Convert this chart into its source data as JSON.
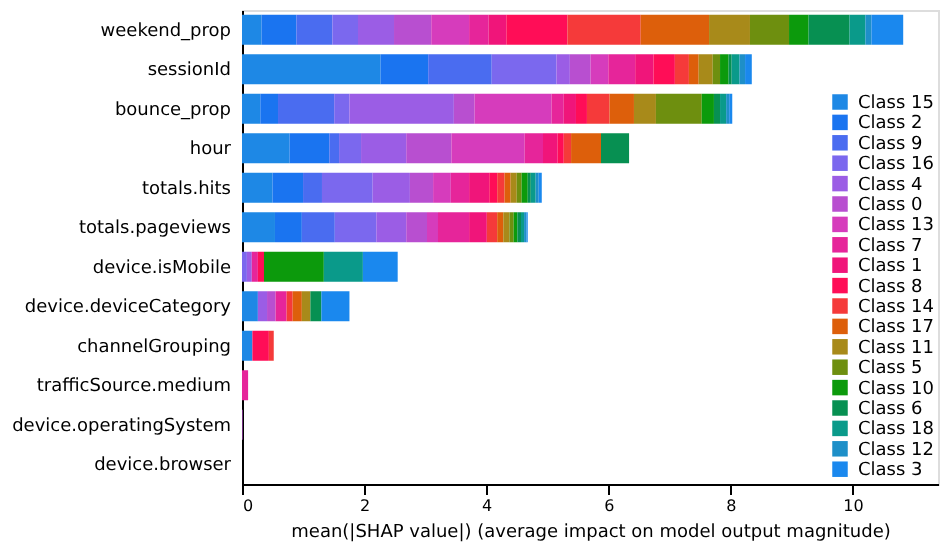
{
  "chart_data": {
    "type": "bar",
    "orientation": "horizontal",
    "stacked": true,
    "xlabel": "mean(|SHAP value|) (average impact on model output magnitude)",
    "categories": [
      "weekend_prop",
      "sessionId",
      "bounce_prop",
      "hour",
      "totals.hits",
      "totals.pageviews",
      "device.isMobile",
      "device.deviceCategory",
      "channelGrouping",
      "trafficSource.medium",
      "device.operatingSystem",
      "device.browser"
    ],
    "xlim": [
      0,
      11.4
    ],
    "xticks": [
      0,
      2,
      4,
      6,
      8,
      10
    ],
    "grid": false,
    "legend": "bottom right",
    "series": [
      {
        "name": "Class 15",
        "color": "#1e88e5",
        "values": [
          0.32,
          2.27,
          0.3,
          0.78,
          0.5,
          0.54,
          null,
          0.26,
          0.17,
          null,
          null,
          null
        ]
      },
      {
        "name": "Class 2",
        "color": "#1a74f0",
        "values": [
          0.57,
          0.78,
          0.29,
          0.65,
          0.5,
          0.44,
          null,
          null,
          null,
          null,
          null,
          null
        ]
      },
      {
        "name": "Class 9",
        "color": "#4a6cf0",
        "values": [
          0.59,
          1.04,
          0.92,
          0.16,
          0.31,
          0.54,
          null,
          null,
          null,
          null,
          null,
          null
        ]
      },
      {
        "name": "Class 16",
        "color": "#7b68ee",
        "values": [
          0.42,
          1.06,
          0.25,
          0.36,
          0.83,
          0.68,
          0.08,
          null,
          null,
          null,
          null,
          null
        ]
      },
      {
        "name": "Class 4",
        "color": "#9b5de5",
        "values": [
          0.59,
          0.22,
          1.71,
          0.74,
          0.61,
          0.49,
          0.08,
          0.15,
          null,
          null,
          null,
          null
        ]
      },
      {
        "name": "Class 0",
        "color": "#b84fd0",
        "values": [
          0.61,
          0.34,
          0.34,
          0.74,
          0.38,
          0.34,
          null,
          0.14,
          null,
          null,
          0.01,
          null
        ]
      },
      {
        "name": "Class 13",
        "color": "#d63cbc",
        "values": [
          0.62,
          0.29,
          1.26,
          1.2,
          0.29,
          0.18,
          null,
          null,
          null,
          null,
          null,
          null
        ]
      },
      {
        "name": "Class 7",
        "color": "#e6259a",
        "values": [
          0.32,
          0.44,
          0.2,
          0.3,
          0.3,
          0.51,
          0.1,
          0.18,
          null,
          0.1,
          null,
          null
        ]
      },
      {
        "name": "Class 1",
        "color": "#f0157a",
        "values": [
          0.29,
          0.3,
          0.2,
          0.24,
          0.33,
          0.29,
          null,
          null,
          null,
          null,
          null,
          null
        ]
      },
      {
        "name": "Class 8",
        "color": "#ff0d57",
        "values": [
          1.0,
          0.35,
          0.18,
          0.1,
          0.13,
          null,
          0.1,
          null,
          0.27,
          null,
          null,
          null
        ]
      },
      {
        "name": "Class 14",
        "color": "#f53a3a",
        "values": [
          1.2,
          0.23,
          0.37,
          0.12,
          0.12,
          0.17,
          null,
          0.1,
          0.08,
          null,
          null,
          null
        ]
      },
      {
        "name": "Class 17",
        "color": "#dd5f0b",
        "values": [
          1.12,
          0.16,
          0.4,
          0.49,
          0.1,
          0.1,
          null,
          0.15,
          null,
          null,
          null,
          null
        ]
      },
      {
        "name": "Class 11",
        "color": "#a88a1a",
        "values": [
          0.67,
          0.23,
          0.36,
          null,
          0.1,
          0.1,
          null,
          0.14,
          null,
          null,
          null,
          null
        ]
      },
      {
        "name": "Class 5",
        "color": "#6e8f0f",
        "values": [
          0.64,
          0.12,
          0.75,
          null,
          0.08,
          0.07,
          null,
          null,
          null,
          null,
          null,
          null
        ]
      },
      {
        "name": "Class 10",
        "color": "#0c9a0c",
        "values": [
          0.32,
          0.14,
          0.2,
          null,
          0.1,
          0.06,
          0.98,
          null,
          null,
          null,
          null,
          null
        ]
      },
      {
        "name": "Class 6",
        "color": "#079052",
        "values": [
          0.67,
          0.05,
          0.1,
          0.46,
          0.05,
          0.06,
          null,
          0.18,
          null,
          null,
          null,
          null
        ]
      },
      {
        "name": "Class 18",
        "color": "#0a9a8a",
        "values": [
          0.26,
          0.13,
          0.1,
          null,
          0.08,
          0.05,
          0.64,
          null,
          null,
          null,
          null,
          null
        ]
      },
      {
        "name": "Class 12",
        "color": "#1e8fc8",
        "values": [
          0.1,
          0.09,
          0.05,
          null,
          0.05,
          0.04,
          null,
          null,
          null,
          null,
          null,
          null
        ]
      },
      {
        "name": "Class 3",
        "color": "#1a88ee",
        "values": [
          0.52,
          0.11,
          0.05,
          null,
          0.05,
          0.02,
          0.57,
          0.46,
          null,
          null,
          null,
          null
        ]
      }
    ]
  }
}
